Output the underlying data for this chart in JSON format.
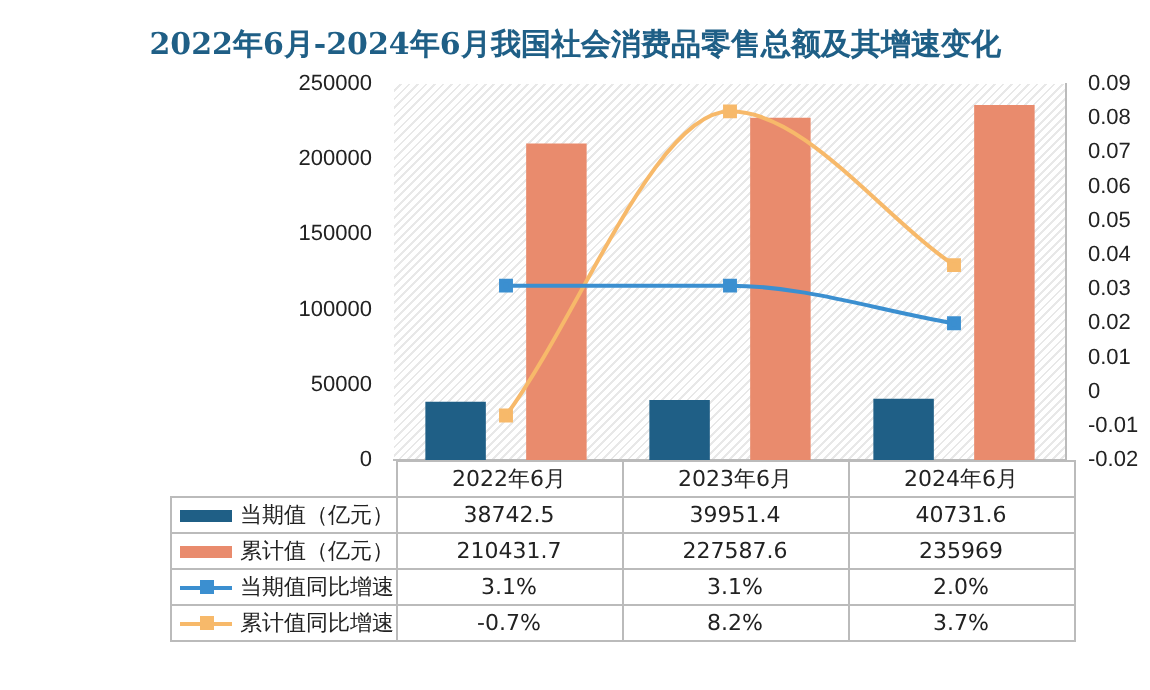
{
  "chart_data": {
    "type": "bar",
    "title": "2022年6月-2024年6月我国社会消费品零售总额及其增速变化",
    "categories": [
      "2022年6月",
      "2023年6月",
      "2024年6月"
    ],
    "series": [
      {
        "name": "当期值（亿元）",
        "color": "#1f5f86",
        "values": [
          38742.5,
          39951.4,
          40731.6
        ]
      },
      {
        "name": "累计值（亿元）",
        "color": "#e98b6d",
        "values": [
          210431.7,
          227587.6,
          235969
        ]
      },
      {
        "name": "当期值同比增速",
        "type": "line",
        "axis": "y2",
        "color": "#3b8fd0",
        "marker": "square",
        "values": [
          0.031,
          0.031,
          0.02
        ],
        "value_labels": [
          "3.1%",
          "3.1%",
          "2.0%"
        ]
      },
      {
        "name": "累计值同比增速",
        "type": "line",
        "axis": "y2",
        "color": "#f7b96a",
        "marker": "square",
        "values": [
          -0.007,
          0.082,
          0.037
        ],
        "value_labels": [
          "-0.7%",
          "8.2%",
          "3.7%"
        ]
      }
    ],
    "ylim": [
      0,
      250000
    ],
    "yticks": [
      0,
      50000,
      100000,
      150000,
      200000,
      250000
    ],
    "y2lim": [
      -0.02,
      0.09
    ],
    "y2ticks": [
      -0.02,
      -0.01,
      0,
      0.01,
      0.02,
      0.03,
      0.04,
      0.05,
      0.06,
      0.07,
      0.08,
      0.09
    ],
    "data_labels": true,
    "legend": "bottom"
  }
}
